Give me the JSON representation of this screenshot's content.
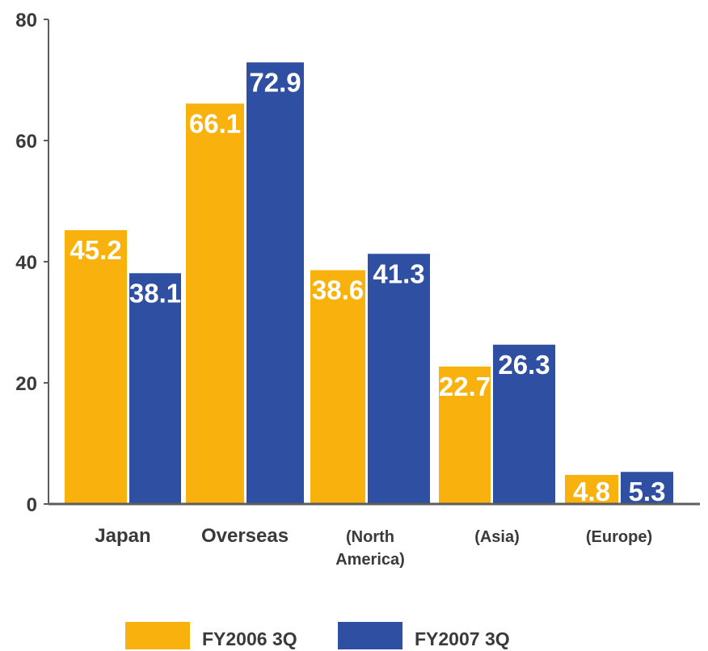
{
  "chart_data": {
    "type": "bar",
    "categories": [
      "Japan",
      "Overseas",
      "(North\nAmerica)",
      "(Asia)",
      "(Europe)"
    ],
    "series": [
      {
        "name": "FY2006 3Q",
        "color": "#f9b10e",
        "values": [
          45.2,
          66.1,
          38.6,
          22.7,
          4.8
        ]
      },
      {
        "name": "FY2007 3Q",
        "color": "#2f4fa3",
        "values": [
          38.1,
          72.9,
          41.3,
          26.3,
          5.3
        ]
      }
    ],
    "value_labels": [
      [
        "45.2",
        "66.1",
        "38.6",
        "22.7",
        "4.8"
      ],
      [
        "38.1",
        "72.9",
        "41.3",
        "26.3",
        "5.3"
      ]
    ],
    "ylim": [
      0,
      80
    ],
    "yticks": [
      "0",
      "20",
      "40",
      "60",
      "80"
    ],
    "grid": false,
    "legend_position": "bottom"
  }
}
